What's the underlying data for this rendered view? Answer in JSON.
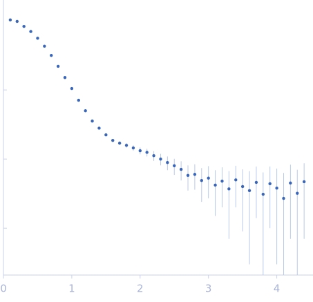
{
  "chart_data": {
    "type": "scatter",
    "log_y": true,
    "x": [
      0.1,
      0.2,
      0.3,
      0.4,
      0.5,
      0.6,
      0.7,
      0.8,
      0.9,
      1.0,
      1.1,
      1.2,
      1.3,
      1.4,
      1.5,
      1.6,
      1.7,
      1.8,
      1.9,
      2.0,
      2.1,
      2.2,
      2.3,
      2.4,
      2.5,
      2.6,
      2.7,
      2.8,
      2.9,
      3.0,
      3.1,
      3.2,
      3.3,
      3.4,
      3.5,
      3.6,
      3.7,
      3.8,
      3.9,
      4.0,
      4.1,
      4.2,
      4.3,
      4.4
    ],
    "series": [
      {
        "color": "#3a66b8",
        "error_color": "#b9c9e8",
        "values": [
          1.03,
          0.98,
          0.83,
          0.7,
          0.56,
          0.43,
          0.316,
          0.22,
          0.151,
          0.105,
          0.071,
          0.05,
          0.0355,
          0.028,
          0.0224,
          0.0186,
          0.017,
          0.0158,
          0.0145,
          0.0132,
          0.0125,
          0.0112,
          0.01,
          0.0089,
          0.008,
          0.0071,
          0.0058,
          0.006,
          0.0049,
          0.0053,
          0.0042,
          0.0048,
          0.0037,
          0.005,
          0.004,
          0.0035,
          0.0046,
          0.0031,
          0.0044,
          0.0038,
          0.0027,
          0.0045,
          0.0032,
          0.0047
        ],
        "errors": [
          0.01,
          0.01,
          0.01,
          0.008,
          0.006,
          0.005,
          0.004,
          0.003,
          0.002,
          0.0015,
          0.0012,
          0.001,
          0.0008,
          0.0007,
          0.0008,
          0.0009,
          0.001,
          0.0012,
          0.0013,
          0.0015,
          0.0016,
          0.0018,
          0.0019,
          0.002,
          0.0021,
          0.0022,
          0.0023,
          0.0024,
          0.0025,
          0.0026,
          0.0027,
          0.0028,
          0.003,
          0.003,
          0.0031,
          0.0032,
          0.0032,
          0.0033,
          0.0034,
          0.0035,
          0.0036,
          0.0038,
          0.0038,
          0.004
        ]
      }
    ],
    "xlim": [
      -0.05,
      4.48
    ],
    "xticks": [
      0,
      1,
      2,
      3,
      4
    ],
    "ylim": [
      0.00021,
      2.0
    ],
    "yticks": [
      0.1,
      0.01,
      0.001
    ]
  }
}
